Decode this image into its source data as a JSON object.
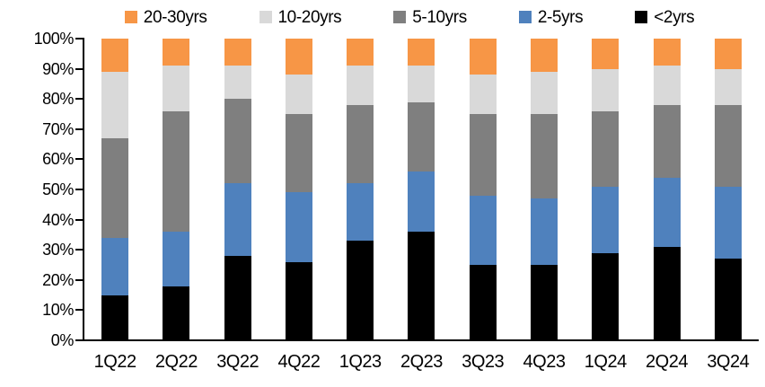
{
  "chart_data": {
    "type": "bar",
    "subtype": "stacked-100-percent",
    "title": "",
    "xlabel": "",
    "ylabel": "",
    "grid": false,
    "legend_position": "top",
    "background_color": "#ffffff",
    "axis_color": "#000000",
    "categories": [
      "1Q22",
      "2Q22",
      "3Q22",
      "4Q22",
      "1Q23",
      "2Q23",
      "3Q23",
      "4Q23",
      "1Q24",
      "2Q24",
      "3Q24"
    ],
    "series": [
      {
        "name": "<2yrs",
        "color": "#000000",
        "values": [
          15,
          18,
          28,
          26,
          33,
          36,
          25,
          25,
          29,
          31,
          27
        ]
      },
      {
        "name": "2-5yrs",
        "color": "#4F81BD",
        "values": [
          19,
          18,
          24,
          23,
          19,
          20,
          23,
          22,
          22,
          23,
          24
        ]
      },
      {
        "name": "5-10yrs",
        "color": "#7F7F7F",
        "values": [
          33,
          40,
          28,
          26,
          26,
          23,
          27,
          28,
          25,
          24,
          27
        ]
      },
      {
        "name": "10-20yrs",
        "color": "#D9D9D9",
        "values": [
          22,
          15,
          11,
          13,
          13,
          12,
          13,
          14,
          14,
          13,
          12
        ]
      },
      {
        "name": "20-30yrs",
        "color": "#F79646",
        "values": [
          11,
          9,
          9,
          12,
          9,
          9,
          12,
          11,
          10,
          9,
          10
        ]
      }
    ],
    "legend_order": [
      "20-30yrs",
      "10-20yrs",
      "5-10yrs",
      "2-5yrs",
      "<2yrs"
    ],
    "y_axis": {
      "min": 0,
      "max": 100,
      "tick_step": 10,
      "tick_labels": [
        "0%",
        "10%",
        "20%",
        "30%",
        "40%",
        "50%",
        "60%",
        "70%",
        "80%",
        "90%",
        "100%"
      ]
    }
  }
}
